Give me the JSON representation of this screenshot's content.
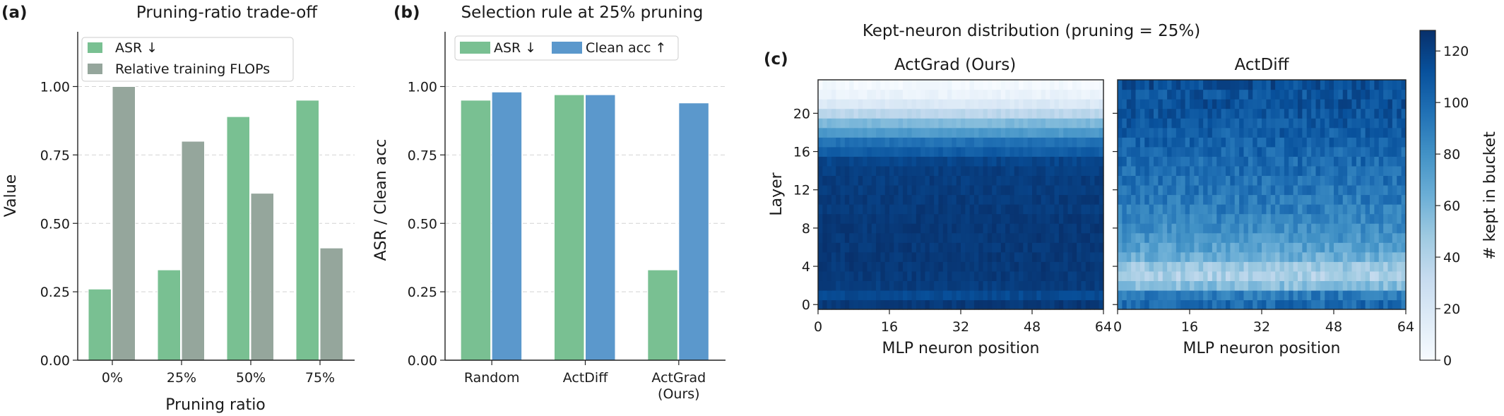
{
  "panel_a": {
    "tag": "(a)",
    "title": "Pruning-ratio trade-off",
    "legend": [
      "ASR ↓",
      "Relative training FLOPs"
    ]
  },
  "panel_b": {
    "tag": "(b)",
    "title": "Selection rule at 25% pruning",
    "legend": [
      "ASR ↓",
      "Clean acc ↑"
    ]
  },
  "panel_c": {
    "tag": "(c)",
    "title": "Kept-neuron distribution (pruning = 25%)",
    "left_title": "ActGrad (Ours)",
    "right_title": "ActDiff",
    "colorbar_label": "# kept in bucket"
  },
  "colors": {
    "asr": "#79c092",
    "flops": "#95a69c",
    "clean": "#5b98cc"
  },
  "chart_data": [
    {
      "type": "bar",
      "title": "Pruning-ratio trade-off",
      "xlabel": "Pruning ratio",
      "ylabel": "Value",
      "categories": [
        "0%",
        "25%",
        "50%",
        "75%"
      ],
      "series": [
        {
          "name": "ASR ↓",
          "values": [
            0.26,
            0.33,
            0.89,
            0.95
          ]
        },
        {
          "name": "Relative training FLOPs",
          "values": [
            1.0,
            0.8,
            0.61,
            0.41
          ]
        }
      ],
      "ylim": [
        0,
        1.2
      ],
      "yticks": [
        "0.00",
        "0.25",
        "0.50",
        "0.75",
        "1.00"
      ],
      "grid": "y dashed",
      "legend": "top-left"
    },
    {
      "type": "bar",
      "title": "Selection rule at 25% pruning",
      "xlabel": "",
      "ylabel": "ASR / Clean acc",
      "categories": [
        "Random",
        "ActDiff",
        "ActGrad\n(Ours)"
      ],
      "series": [
        {
          "name": "ASR ↓",
          "values": [
            0.95,
            0.97,
            0.33
          ]
        },
        {
          "name": "Clean acc ↑",
          "values": [
            0.98,
            0.97,
            0.94
          ]
        }
      ],
      "ylim": [
        0,
        1.2
      ],
      "yticks": [
        "0.00",
        "0.25",
        "0.50",
        "0.75",
        "1.00"
      ],
      "grid": "y dashed",
      "legend": "top-left"
    },
    {
      "type": "heatmap",
      "title": "ActGrad (Ours)",
      "xlabel": "MLP neuron position",
      "ylabel": "Layer",
      "x_buckets": 64,
      "y_layers": 24,
      "xticks": [
        "0",
        "16",
        "32",
        "48",
        "64"
      ],
      "yticks": [
        "0",
        "4",
        "8",
        "12",
        "16",
        "20"
      ],
      "layer_kept": [
        124,
        116,
        122,
        123,
        124,
        124,
        124,
        124,
        124,
        124,
        123,
        123,
        122,
        122,
        121,
        118,
        106,
        96,
        75,
        58,
        36,
        18,
        8,
        3
      ]
    },
    {
      "type": "heatmap",
      "title": "ActDiff",
      "xlabel": "MLP neuron position",
      "ylabel": "",
      "x_buckets": 64,
      "y_layers": 24,
      "xticks": [
        "0",
        "16",
        "32",
        "48",
        "64"
      ],
      "layer_kept": [
        100,
        92,
        55,
        42,
        48,
        64,
        72,
        78,
        82,
        86,
        90,
        92,
        94,
        96,
        98,
        100,
        102,
        104,
        106,
        108,
        110,
        112,
        110,
        114
      ],
      "colorbar": {
        "min": 0,
        "max": 128,
        "ticks": [
          "0",
          "20",
          "40",
          "60",
          "80",
          "100",
          "120"
        ],
        "colormap": "Blues"
      }
    }
  ]
}
